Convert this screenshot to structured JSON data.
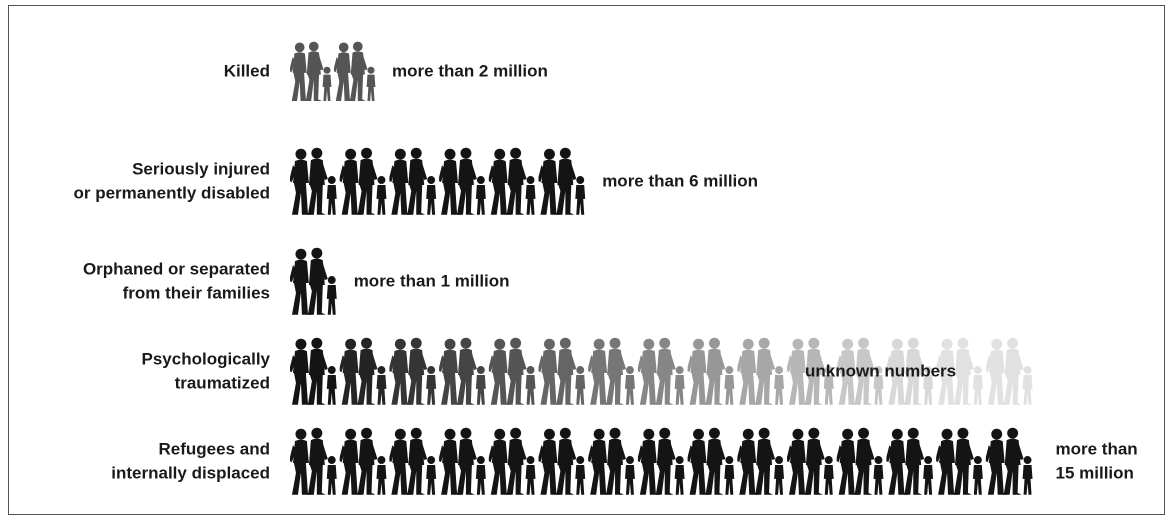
{
  "chart_data": {
    "type": "pictogram",
    "categories": [
      [
        "Killed"
      ],
      [
        "Seriously injured",
        "or permanently disabled"
      ],
      [
        "Orphaned or separated",
        "from their families"
      ],
      [
        "Psychologically",
        "traumatized"
      ],
      [
        "Refugees and",
        "internally displaced"
      ]
    ],
    "values": [
      2,
      6,
      1,
      null,
      15
    ],
    "value_labels": [
      [
        "more than 2 million"
      ],
      [
        "more than 6 million"
      ],
      [
        "more than 1 million"
      ],
      [
        "unknown numbers"
      ],
      [
        "more than",
        "15 million"
      ]
    ],
    "colors": [
      "#555555",
      "#141414",
      "#141414",
      "#141414",
      "#141414"
    ]
  }
}
